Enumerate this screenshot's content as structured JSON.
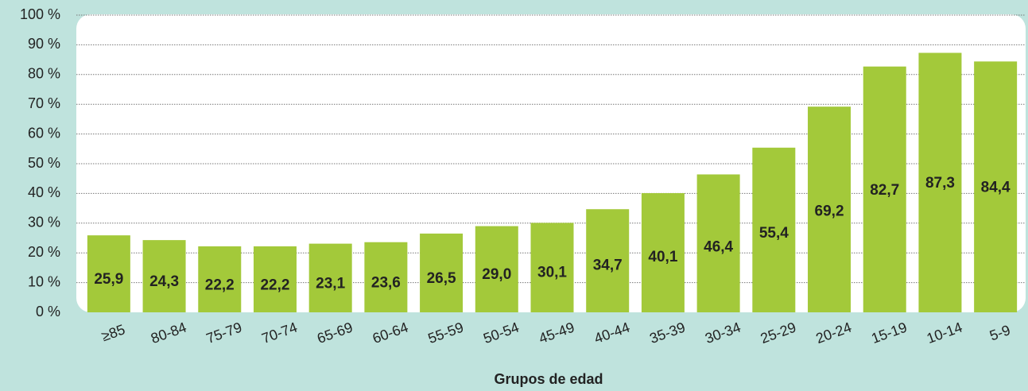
{
  "chart_data": {
    "type": "bar",
    "x_label": "Grupos de edad",
    "categories": [
      "≥85",
      "80-84",
      "75-79",
      "70-74",
      "65-69",
      "60-64",
      "55-59",
      "50-54",
      "45-49",
      "40-44",
      "35-39",
      "30-34",
      "25-29",
      "20-24",
      "15-19",
      "10-14",
      "5-9"
    ],
    "values": [
      25.9,
      24.3,
      22.2,
      22.2,
      23.1,
      23.6,
      26.5,
      29.0,
      30.1,
      34.7,
      40.1,
      46.4,
      55.4,
      69.2,
      82.7,
      87.3,
      84.4
    ],
    "value_labels": [
      "25,9",
      "24,3",
      "22,2",
      "22,2",
      "23,1",
      "23,6",
      "26,5",
      "29,0",
      "30,1",
      "34,7",
      "40,1",
      "46,4",
      "55,4",
      "69,2",
      "82,7",
      "87,3",
      "84,4"
    ],
    "color": "#a3c93a",
    "ylim": [
      0,
      100
    ],
    "yticks": [
      {
        "value": 0,
        "label": "0 %"
      },
      {
        "value": 10,
        "label": "10 %"
      },
      {
        "value": 20,
        "label": "20 %"
      },
      {
        "value": 30,
        "label": "30 %"
      },
      {
        "value": 40,
        "label": "40 %"
      },
      {
        "value": 50,
        "label": "50 %"
      },
      {
        "value": 60,
        "label": "60 %"
      },
      {
        "value": 70,
        "label": "70 %"
      },
      {
        "value": 80,
        "label": "80 %"
      },
      {
        "value": 90,
        "label": "90 %"
      },
      {
        "value": 100,
        "label": "100 %"
      }
    ],
    "grid": true
  }
}
